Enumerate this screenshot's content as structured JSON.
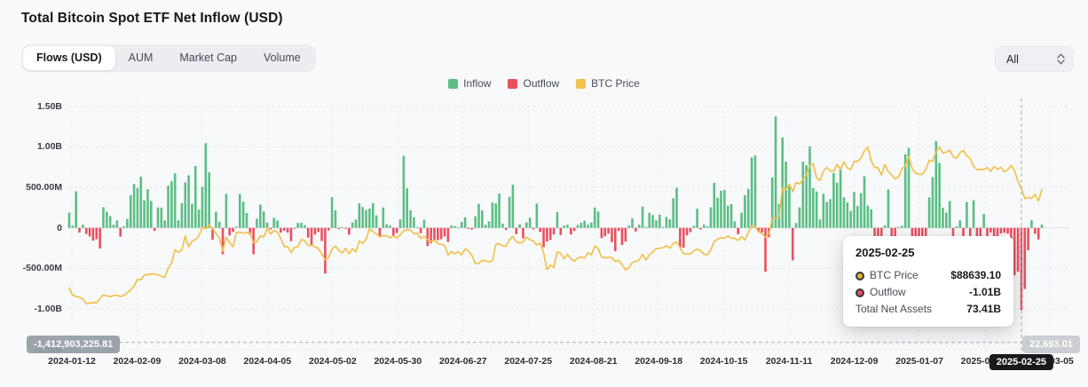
{
  "header": {
    "title": "Total Bitcoin Spot ETF Net Inflow (USD)"
  },
  "tabs": [
    {
      "label": "Flows (USD)",
      "active": true
    },
    {
      "label": "AUM",
      "active": false
    },
    {
      "label": "Market Cap",
      "active": false
    },
    {
      "label": "Volume",
      "active": false
    }
  ],
  "range_select": {
    "value": "All"
  },
  "legend": [
    {
      "label": "Inflow",
      "color": "#5cbe85"
    },
    {
      "label": "Outflow",
      "color": "#e8515f"
    },
    {
      "label": "BTC Price",
      "color": "#f2c14e"
    }
  ],
  "crosshair": {
    "date": "2025-02-25",
    "left_value": "-1,412,903,225.81",
    "right_value": "22,693.01",
    "bar_index": 279,
    "y_value_musd": -1412.9,
    "line_color": "#a6abb2"
  },
  "tooltip": {
    "date": "2025-02-25",
    "rows": [
      {
        "label": "BTC Price",
        "value": "$88639.10",
        "dot": "#e8b425"
      },
      {
        "label": "Outflow",
        "value": "-1.01B",
        "dot": "#e8515f"
      },
      {
        "label": "Total Net Assets",
        "value": "73.41B",
        "dot": null
      }
    ]
  },
  "chart_data": {
    "type": "bar+line",
    "title": "Total Bitcoin Spot ETF Net Inflow (USD)",
    "x": {
      "start": "2024-01-12",
      "end": "2025-03-05",
      "points": 286,
      "frequency": "daily (trading days)",
      "tick_labels": [
        "2024-01-12",
        "2024-02-09",
        "2024-03-08",
        "2024-04-05",
        "2024-05-02",
        "2024-05-30",
        "2024-06-27",
        "2024-07-25",
        "2024-08-21",
        "2024-09-18",
        "2024-10-15",
        "2024-11-11",
        "2024-12-09",
        "2025-01-07",
        "2025-02-04",
        "2025-03-05"
      ]
    },
    "y_left": {
      "tick_labels": [
        "1.50B",
        "1.00B",
        "500.00M",
        "0",
        "-500.00M",
        "-1.00B",
        "-1.50B"
      ],
      "tick_values_million": [
        1500,
        1000,
        500,
        0,
        -500,
        -1000,
        -1500
      ],
      "ylim_million": [
        -1500,
        1500
      ],
      "grid": "dashed"
    },
    "y_right": {
      "hidden": true,
      "crosshair_value": "22,693.01"
    },
    "legend_position": "top-center",
    "bar_series": {
      "name": "Net Flow (Inflow/Outflow)",
      "unit": "million USD",
      "inflow_color": "#5cbe85",
      "outflow_color": "#e8515f",
      "values_million_usd": [
        187,
        28,
        451,
        -59,
        39,
        -76,
        -106,
        -158,
        -140,
        -255,
        255,
        198,
        145,
        38,
        92,
        -109,
        20,
        110,
        403,
        541,
        493,
        631,
        340,
        477,
        331,
        -36,
        251,
        251,
        92,
        519,
        576,
        673,
        92,
        303,
        562,
        648,
        298,
        763,
        225,
        505,
        1045,
        684,
        -146,
        199,
        75,
        -326,
        418,
        -94,
        -51,
        15,
        418,
        323,
        183,
        -86,
        -326,
        113,
        288,
        203,
        64,
        -19,
        124,
        91,
        -58,
        -36,
        -58,
        -165,
        -4,
        60,
        62,
        32,
        -120,
        -218,
        -84,
        -52,
        -162,
        -564,
        -34,
        378,
        217,
        -16,
        11,
        -11,
        -85,
        66,
        101,
        303,
        257,
        221,
        237,
        305,
        154,
        -105,
        252,
        45,
        28,
        -105,
        -65,
        105,
        887,
        488,
        218,
        132,
        6,
        -65,
        100,
        -226,
        -190,
        -146,
        -152,
        -140,
        -106,
        -174,
        31,
        21,
        11,
        73,
        130,
        -13,
        -20,
        143,
        295,
        216,
        38,
        79,
        310,
        301,
        423,
        53,
        -26,
        383,
        533,
        -78,
        44,
        -131,
        67,
        124,
        -18,
        299,
        -50,
        -238,
        -168,
        -149,
        -81,
        194,
        -89,
        28,
        39,
        -81,
        -39,
        36,
        62,
        88,
        40,
        65,
        252,
        202,
        -127,
        -105,
        -71,
        -176,
        -288,
        -38,
        -211,
        -170,
        29,
        117,
        -44,
        39,
        263,
        13,
        187,
        158,
        92,
        161,
        4,
        136,
        106,
        365,
        494,
        -243,
        -243,
        -92,
        -54,
        26,
        235,
        -19,
        41,
        18,
        253,
        556,
        371,
        458,
        470,
        273,
        294,
        79,
        -79,
        188,
        402,
        479,
        870,
        893,
        -55,
        -54,
        -541,
        -116,
        622,
        1374,
        293,
        1114,
        817,
        510,
        -401,
        60,
        254,
        816,
        773,
        1005,
        490,
        449,
        103,
        420,
        320,
        354,
        676,
        557,
        748,
        377,
        314,
        209,
        441,
        272,
        429,
        636,
        275,
        227,
        -672,
        -277,
        -226,
        31,
        475,
        -148,
        -330,
        5,
        25,
        908,
        987,
        -569,
        -583,
        -149,
        -284,
        -210,
        377,
        626,
        1070,
        802,
        249,
        188,
        331,
        -457,
        18,
        92,
        -226,
        318,
        -235,
        341,
        -140,
        -140,
        171,
        -186,
        -56,
        -251,
        -157,
        -69,
        -60,
        -71,
        -364,
        -585,
        -539,
        -1010,
        -754,
        -276,
        94,
        -74,
        -143,
        40
      ]
    },
    "line_series": {
      "name": "BTC Price",
      "unit": "USD",
      "color": "#f2c14e",
      "values_usd": [
        46300,
        43150,
        42750,
        42280,
        41620,
        39550,
        39880,
        40080,
        39960,
        41820,
        43300,
        42940,
        42580,
        43080,
        43190,
        42660,
        43100,
        44340,
        45300,
        47150,
        49920,
        49750,
        51800,
        51940,
        52160,
        52270,
        51840,
        51300,
        50740,
        54520,
        57040,
        62500,
        61430,
        62440,
        68330,
        63800,
        66100,
        66900,
        68300,
        72080,
        71450,
        73080,
        71400,
        69500,
        67610,
        61940,
        67840,
        65500,
        63800,
        69880,
        69990,
        69470,
        69890,
        69650,
        65450,
        65980,
        68510,
        67840,
        71630,
        69140,
        70630,
        70000,
        67200,
        63840,
        63800,
        61280,
        63510,
        63840,
        66840,
        66430,
        64280,
        64500,
        63760,
        63110,
        60640,
        58300,
        59120,
        62890,
        64050,
        62310,
        61190,
        63090,
        60790,
        62940,
        61550,
        66210,
        65230,
        67050,
        71440,
        70150,
        69180,
        67960,
        68550,
        68400,
        67640,
        68350,
        67540,
        68810,
        70570,
        71100,
        70800,
        69330,
        69540,
        67310,
        68250,
        66770,
        66010,
        66500,
        65140,
        64830,
        64260,
        60280,
        61800,
        60860,
        61690,
        60320,
        62830,
        62070,
        60170,
        56660,
        56730,
        58010,
        57740,
        57340,
        57900,
        64740,
        65100,
        64120,
        63970,
        66690,
        68150,
        65930,
        65370,
        65780,
        67910,
        66780,
        66190,
        64620,
        65350,
        61410,
        54020,
        56030,
        55030,
        61710,
        60880,
        58720,
        60600,
        58740,
        57560,
        58890,
        59490,
        59010,
        61170,
        60380,
        64090,
        62880,
        59500,
        59030,
        59390,
        59120,
        57490,
        58000,
        56180,
        53950,
        54840,
        57040,
        57640,
        58130,
        60570,
        58190,
        60310,
        61650,
        62940,
        63160,
        63340,
        64270,
        63160,
        65180,
        65790,
        63330,
        60840,
        60650,
        60750,
        62080,
        62820,
        62160,
        60610,
        60320,
        62450,
        66050,
        67040,
        67620,
        67400,
        68420,
        67370,
        67420,
        66430,
        68160,
        66600,
        69910,
        72720,
        72340,
        70220,
        69480,
        67810,
        69360,
        75570,
        75920,
        76500,
        88700,
        87950,
        90440,
        87250,
        91060,
        90460,
        92310,
        94290,
        98390,
        98950,
        93010,
        91960,
        95900,
        97460,
        95850,
        95930,
        98740,
        96590,
        99830,
        97280,
        96600,
        100040,
        100010,
        101420,
        104470,
        106140,
        100200,
        97470,
        97340,
        94300,
        98680,
        95800,
        94160,
        92640,
        93430,
        96890,
        98110,
        102260,
        96920,
        95060,
        94700,
        94540,
        96560,
        100500,
        99990,
        104080,
        106150,
        103650,
        103960,
        104820,
        102080,
        101340,
        103700,
        104720,
        102400,
        101400,
        97870,
        96610,
        96570,
        96560,
        97440,
        95780,
        97860,
        96610,
        97510,
        95640,
        96630,
        98330,
        96180,
        91420,
        88640,
        84250,
        84700,
        84370,
        86070,
        83200,
        88100
      ]
    },
    "tooltip_shown": {
      "date": "2025-02-25",
      "btc_price": "$88639.10",
      "outflow": "-1.01B",
      "total_net_assets": "73.41B"
    }
  }
}
